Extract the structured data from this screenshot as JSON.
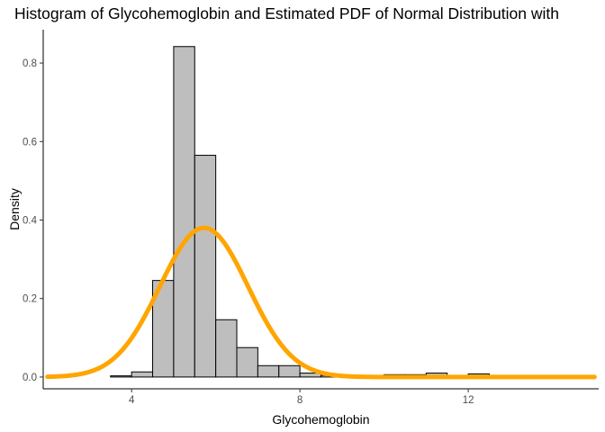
{
  "chart_data": {
    "type": "bar",
    "title": "Histogram of Glycohemoglobin and Estimated PDF of Normal Distribution with",
    "xlabel": "Glycohemoglobin",
    "ylabel": "Density",
    "xlim": [
      1.9,
      15.1
    ],
    "ylim": [
      -0.03,
      0.885
    ],
    "x_ticks": [
      4,
      8,
      12
    ],
    "y_ticks": [
      0.0,
      0.2,
      0.4,
      0.6,
      0.8
    ],
    "y_tick_labels": [
      "0.0",
      "0.2",
      "0.4",
      "0.6",
      "0.8"
    ],
    "bin_width": 0.5,
    "bins": [
      {
        "x0": 2.5,
        "x1": 3.0,
        "density": 0.0
      },
      {
        "x0": 3.0,
        "x1": 3.5,
        "density": 0.0
      },
      {
        "x0": 3.5,
        "x1": 4.0,
        "density": 0.003
      },
      {
        "x0": 4.0,
        "x1": 4.5,
        "density": 0.013
      },
      {
        "x0": 4.5,
        "x1": 5.0,
        "density": 0.246
      },
      {
        "x0": 5.0,
        "x1": 5.5,
        "density": 0.842
      },
      {
        "x0": 5.5,
        "x1": 6.0,
        "density": 0.565
      },
      {
        "x0": 6.0,
        "x1": 6.5,
        "density": 0.146
      },
      {
        "x0": 6.5,
        "x1": 7.0,
        "density": 0.075
      },
      {
        "x0": 7.0,
        "x1": 7.5,
        "density": 0.029
      },
      {
        "x0": 7.5,
        "x1": 8.0,
        "density": 0.029
      },
      {
        "x0": 8.0,
        "x1": 8.5,
        "density": 0.01
      },
      {
        "x0": 8.5,
        "x1": 9.0,
        "density": 0.004
      },
      {
        "x0": 9.0,
        "x1": 9.5,
        "density": 0.002
      },
      {
        "x0": 9.5,
        "x1": 10.0,
        "density": 0.002
      },
      {
        "x0": 10.0,
        "x1": 10.5,
        "density": 0.006
      },
      {
        "x0": 10.5,
        "x1": 11.0,
        "density": 0.006
      },
      {
        "x0": 11.0,
        "x1": 11.5,
        "density": 0.01
      },
      {
        "x0": 11.5,
        "x1": 12.0,
        "density": 0.004
      },
      {
        "x0": 12.0,
        "x1": 12.5,
        "density": 0.008
      }
    ],
    "normal_curve": {
      "mean": 5.72,
      "sd": 1.05,
      "x_range": [
        2.0,
        15.0
      ],
      "color": "#FFA500"
    },
    "bar_fill": "#BEBEBE",
    "bar_outline": "#000000",
    "grid": false,
    "legend": "none"
  }
}
